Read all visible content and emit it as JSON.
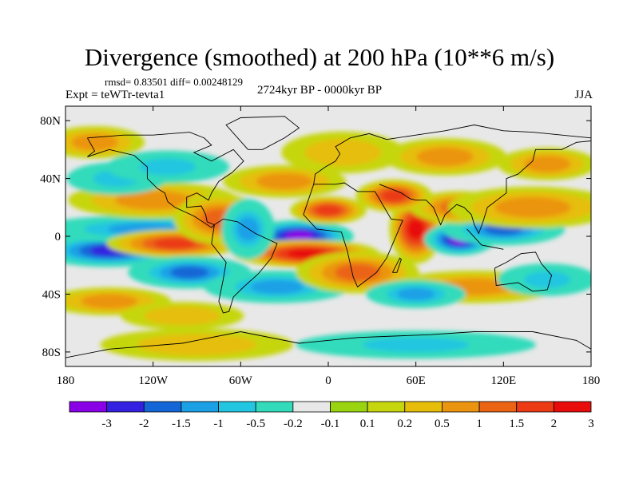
{
  "chart_data": {
    "type": "heatmap",
    "title": "Divergence (smoothed) at 200 hPa (10**6 m/s)",
    "stats_text": "rmsd= 0.83501 diff= 0.00248129",
    "rmsd": 0.83501,
    "diff": 0.00248129,
    "left_label": "Expt = teWTr-tevta1",
    "center_label": "2724kyr BP - 0000kyr BP",
    "right_label": "JJA",
    "x_ticks": [
      {
        "lon": -180,
        "label": "180"
      },
      {
        "lon": -120,
        "label": "120W"
      },
      {
        "lon": -60,
        "label": "60W"
      },
      {
        "lon": 0,
        "label": "0"
      },
      {
        "lon": 60,
        "label": "60E"
      },
      {
        "lon": 120,
        "label": "120E"
      },
      {
        "lon": 180,
        "label": "180"
      }
    ],
    "y_ticks": [
      {
        "lat": 80,
        "label": "80N"
      },
      {
        "lat": 40,
        "label": "40N"
      },
      {
        "lat": 0,
        "label": "0"
      },
      {
        "lat": -40,
        "label": "40S"
      },
      {
        "lat": -80,
        "label": "80S"
      }
    ],
    "xlim": [
      -180,
      180
    ],
    "ylim": [
      -90,
      90
    ],
    "colorbar": {
      "colors": [
        "#8a00e6",
        "#3320e0",
        "#1466d6",
        "#1ba0e6",
        "#22c6e0",
        "#33dbbb",
        "#e8e8e8",
        "#9ad411",
        "#c6d60e",
        "#e6be09",
        "#eb9410",
        "#eb6414",
        "#eb3a14",
        "#e80c0c"
      ],
      "labels": [
        "-3",
        "-2",
        "-1.5",
        "-1",
        "-0.5",
        "-0.2",
        "-0.1",
        "0.1",
        "0.2",
        "0.5",
        "1",
        "1.5",
        "2",
        "3"
      ]
    },
    "field_blobs": [
      {
        "lon": -150,
        "lat": -10,
        "rlon": 30,
        "rlat": 6,
        "value": -2.0
      },
      {
        "lon": -125,
        "lat": 5,
        "rlon": 45,
        "rlat": 5,
        "value": -1.0
      },
      {
        "lon": -105,
        "lat": -5,
        "rlon": 28,
        "rlat": 5,
        "value": 1.5
      },
      {
        "lon": -95,
        "lat": -25,
        "rlon": 25,
        "rlat": 6,
        "value": -1.5
      },
      {
        "lon": -120,
        "lat": 25,
        "rlon": 35,
        "rlat": 7,
        "value": 0.5
      },
      {
        "lon": -145,
        "lat": 40,
        "rlon": 20,
        "rlat": 6,
        "value": -0.5
      },
      {
        "lon": -110,
        "lat": 48,
        "rlon": 25,
        "rlat": 6,
        "value": -0.5
      },
      {
        "lon": -75,
        "lat": 12,
        "rlon": 18,
        "rlat": 10,
        "value": 1.0
      },
      {
        "lon": -20,
        "lat": 0,
        "rlon": 22,
        "rlat": 6,
        "value": -3.0
      },
      {
        "lon": -15,
        "lat": -12,
        "rlon": 30,
        "rlat": 5,
        "value": 2.0
      },
      {
        "lon": -55,
        "lat": 5,
        "rlon": 10,
        "rlat": 12,
        "value": -1.0
      },
      {
        "lon": 0,
        "lat": 18,
        "rlon": 15,
        "rlat": 5,
        "value": 1.5
      },
      {
        "lon": -35,
        "lat": -35,
        "rlon": 30,
        "rlat": 6,
        "value": -1.0
      },
      {
        "lon": 20,
        "lat": -25,
        "rlon": 25,
        "rlat": 8,
        "value": 1.0
      },
      {
        "lon": 60,
        "lat": 5,
        "rlon": 10,
        "rlat": 14,
        "value": 2.0
      },
      {
        "lon": 90,
        "lat": -2,
        "rlon": 14,
        "rlat": 6,
        "value": -3.0
      },
      {
        "lon": 120,
        "lat": 5,
        "rlon": 25,
        "rlat": 6,
        "value": -1.5
      },
      {
        "lon": 90,
        "lat": 20,
        "rlon": 20,
        "rlat": 6,
        "value": 1.0
      },
      {
        "lon": 140,
        "lat": 20,
        "rlon": 35,
        "rlat": 8,
        "value": 0.5
      },
      {
        "lon": 45,
        "lat": 28,
        "rlon": 15,
        "rlat": 6,
        "value": 1.5
      },
      {
        "lon": 100,
        "lat": -35,
        "rlon": 35,
        "rlat": 6,
        "value": 0.5
      },
      {
        "lon": 150,
        "lat": -30,
        "rlon": 20,
        "rlat": 6,
        "value": -0.5
      },
      {
        "lon": 60,
        "lat": -40,
        "rlon": 20,
        "rlat": 5,
        "value": -1.0
      },
      {
        "lon": -150,
        "lat": -45,
        "rlon": 25,
        "rlat": 5,
        "value": 0.5
      },
      {
        "lon": -100,
        "lat": -55,
        "rlon": 25,
        "rlat": 5,
        "value": 0.2
      },
      {
        "lon": -30,
        "lat": 38,
        "rlon": 25,
        "rlat": 6,
        "value": 0.5
      },
      {
        "lon": 10,
        "lat": 58,
        "rlon": 25,
        "rlat": 8,
        "value": 0.2
      },
      {
        "lon": 80,
        "lat": 55,
        "rlon": 25,
        "rlat": 7,
        "value": 0.5
      },
      {
        "lon": -160,
        "lat": 65,
        "rlon": 20,
        "rlat": 6,
        "value": 0.5
      },
      {
        "lon": 150,
        "lat": 50,
        "rlon": 20,
        "rlat": 6,
        "value": 0.5
      },
      {
        "lon": -90,
        "lat": -75,
        "rlon": 40,
        "rlat": 6,
        "value": 0.2
      },
      {
        "lon": 60,
        "lat": -75,
        "rlon": 50,
        "rlat": 5,
        "value": -0.5
      }
    ],
    "coastlines": [
      [
        [
          -165,
          68
        ],
        [
          -140,
          70
        ],
        [
          -120,
          70
        ],
        [
          -95,
          72
        ],
        [
          -85,
          68
        ],
        [
          -80,
          63
        ],
        [
          -92,
          58
        ],
        [
          -80,
          52
        ],
        [
          -65,
          60
        ],
        [
          -58,
          52
        ],
        [
          -66,
          44
        ],
        [
          -75,
          38
        ],
        [
          -80,
          30
        ],
        [
          -82,
          25
        ],
        [
          -90,
          30
        ],
        [
          -97,
          27
        ],
        [
          -97,
          20
        ],
        [
          -87,
          21
        ],
        [
          -84,
          15
        ],
        [
          -83,
          10
        ],
        [
          -78,
          8
        ],
        [
          -80,
          6
        ],
        [
          -92,
          14
        ],
        [
          -105,
          20
        ],
        [
          -110,
          24
        ],
        [
          -112,
          30
        ],
        [
          -117,
          33
        ],
        [
          -124,
          40
        ],
        [
          -124,
          48
        ],
        [
          -133,
          56
        ],
        [
          -150,
          60
        ],
        [
          -165,
          55
        ],
        [
          -160,
          59
        ],
        [
          -165,
          68
        ]
      ],
      [
        [
          -78,
          8
        ],
        [
          -72,
          12
        ],
        [
          -62,
          10
        ],
        [
          -50,
          2
        ],
        [
          -35,
          -5
        ],
        [
          -39,
          -15
        ],
        [
          -48,
          -26
        ],
        [
          -58,
          -35
        ],
        [
          -65,
          -42
        ],
        [
          -68,
          -52
        ],
        [
          -72,
          -53
        ],
        [
          -75,
          -45
        ],
        [
          -72,
          -30
        ],
        [
          -70,
          -18
        ],
        [
          -80,
          -5
        ],
        [
          -78,
          8
        ]
      ],
      [
        [
          -10,
          36
        ],
        [
          5,
          36
        ],
        [
          11,
          37
        ],
        [
          20,
          31
        ],
        [
          32,
          31
        ],
        [
          43,
          12
        ],
        [
          51,
          11
        ],
        [
          40,
          -15
        ],
        [
          33,
          -25
        ],
        [
          20,
          -35
        ],
        [
          17,
          -28
        ],
        [
          13,
          -10
        ],
        [
          9,
          3
        ],
        [
          -8,
          5
        ],
        [
          -17,
          15
        ],
        [
          -10,
          36
        ]
      ],
      [
        [
          -10,
          36
        ],
        [
          -9,
          43
        ],
        [
          -2,
          48
        ],
        [
          5,
          52
        ],
        [
          8,
          57
        ],
        [
          5,
          62
        ],
        [
          15,
          68
        ],
        [
          28,
          71
        ],
        [
          40,
          67
        ],
        [
          60,
          70
        ],
        [
          80,
          73
        ],
        [
          100,
          77
        ],
        [
          120,
          73
        ],
        [
          140,
          72
        ],
        [
          160,
          70
        ],
        [
          180,
          68
        ]
      ],
      [
        [
          35,
          36
        ],
        [
          50,
          30
        ],
        [
          56,
          26
        ],
        [
          60,
          25
        ],
        [
          67,
          25
        ],
        [
          72,
          20
        ],
        [
          77,
          8
        ],
        [
          80,
          15
        ],
        [
          88,
          22
        ],
        [
          93,
          20
        ],
        [
          98,
          15
        ],
        [
          100,
          8
        ],
        [
          103,
          2
        ],
        [
          106,
          10
        ],
        [
          109,
          20
        ],
        [
          122,
          30
        ],
        [
          122,
          40
        ],
        [
          130,
          43
        ],
        [
          140,
          52
        ],
        [
          142,
          60
        ],
        [
          160,
          60
        ],
        [
          170,
          65
        ],
        [
          180,
          66
        ]
      ],
      [
        [
          114,
          -22
        ],
        [
          122,
          -18
        ],
        [
          132,
          -12
        ],
        [
          142,
          -11
        ],
        [
          146,
          -19
        ],
        [
          153,
          -27
        ],
        [
          150,
          -37
        ],
        [
          140,
          -38
        ],
        [
          130,
          -32
        ],
        [
          115,
          -34
        ],
        [
          114,
          -22
        ]
      ],
      [
        [
          95,
          5
        ],
        [
          105,
          -6
        ],
        [
          115,
          -8
        ],
        [
          120,
          -9
        ]
      ],
      [
        [
          -180,
          -84
        ],
        [
          -150,
          -78
        ],
        [
          -100,
          -74
        ],
        [
          -60,
          -66
        ],
        [
          -20,
          -74
        ],
        [
          20,
          -70
        ],
        [
          70,
          -68
        ],
        [
          100,
          -66
        ],
        [
          140,
          -66
        ],
        [
          170,
          -72
        ],
        [
          180,
          -78
        ]
      ],
      [
        [
          -55,
          60
        ],
        [
          -45,
          60
        ],
        [
          -30,
          68
        ],
        [
          -20,
          75
        ],
        [
          -30,
          83
        ],
        [
          -60,
          82
        ],
        [
          -70,
          77
        ],
        [
          -55,
          60
        ]
      ],
      [
        [
          44,
          -25
        ],
        [
          49,
          -15
        ],
        [
          50,
          -16
        ],
        [
          47,
          -25
        ],
        [
          44,
          -25
        ]
      ]
    ]
  }
}
